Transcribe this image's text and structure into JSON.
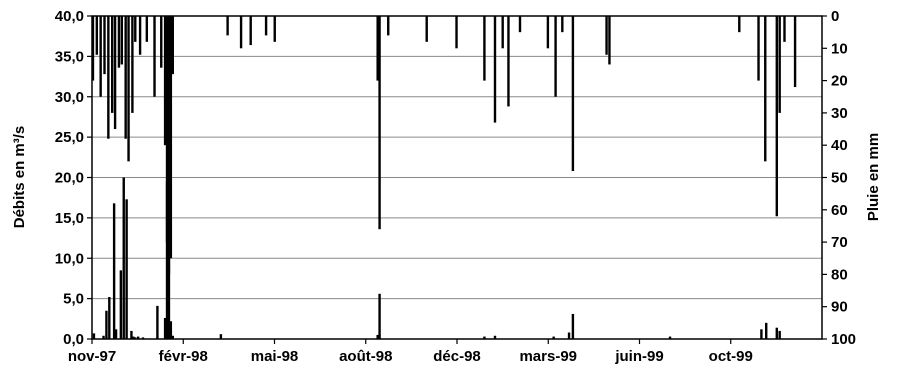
{
  "chart_data": {
    "type": "bar",
    "title": "",
    "x_ticks": [
      "nov-97",
      "févr-98",
      "mai-98",
      "août-98",
      "déc-98",
      "mars-99",
      "juin-99",
      "oct-99"
    ],
    "x_range": [
      "1997-11-01",
      "1999-11-30"
    ],
    "y_left": {
      "label": "Débits en m³/s",
      "range": [
        0,
        40
      ],
      "ticks": [
        "0,0",
        "5,0",
        "10,0",
        "15,0",
        "20,0",
        "25,0",
        "30,0",
        "35,0",
        "40,0"
      ]
    },
    "y_right": {
      "label": "Pluie en mm",
      "range": [
        0,
        100
      ],
      "inverted": true,
      "ticks": [
        "0",
        "10",
        "20",
        "30",
        "40",
        "50",
        "60",
        "70",
        "80",
        "90",
        "100"
      ]
    },
    "grid": true,
    "series": [
      {
        "name": "",
        "axis": "left",
        "type": "bar",
        "date": [
          "1997-11-03",
          "1997-11-13",
          "1997-11-16",
          "1997-11-19",
          "1997-11-24",
          "1997-11-26",
          "1997-12-01",
          "1997-12-04",
          "1997-12-07",
          "1997-12-12",
          "1997-12-14",
          "1997-12-16",
          "1997-12-19",
          "1997-12-24",
          "1998-01-08",
          "1998-01-16",
          "1998-01-18",
          "1998-01-20",
          "1998-01-22",
          "1998-01-24",
          "1998-03-15",
          "1998-08-25",
          "1998-08-27",
          "1998-12-14",
          "1998-12-25",
          "1999-02-24",
          "1999-03-12",
          "1999-03-16",
          "1999-06-25",
          "1999-09-28",
          "1999-10-03",
          "1999-10-14",
          "1999-10-17"
        ],
        "values": [
          0.7,
          0.4,
          3.5,
          5.2,
          16.8,
          1.2,
          8.5,
          20.0,
          17.3,
          1.0,
          0.3,
          0.2,
          0.3,
          0.2,
          4.1,
          2.6,
          19.5,
          13.3,
          2.2,
          0.4,
          0.6,
          0.5,
          5.6,
          0.3,
          0.4,
          0.3,
          0.8,
          3.1,
          0.3,
          1.2,
          2.0,
          1.4,
          1.0
        ]
      },
      {
        "name": "",
        "axis": "right",
        "type": "bar",
        "date": [
          "1997-11-02",
          "1997-11-06",
          "1997-11-10",
          "1997-11-14",
          "1997-11-18",
          "1997-11-22",
          "1997-11-25",
          "1997-11-29",
          "1997-12-02",
          "1997-12-06",
          "1997-12-09",
          "1997-12-13",
          "1997-12-16",
          "1997-12-21",
          "1997-12-28",
          "1998-01-05",
          "1998-01-12",
          "1998-01-16",
          "1998-01-18",
          "1998-01-20",
          "1998-01-22",
          "1998-01-24",
          "1998-03-22",
          "1998-04-05",
          "1998-04-15",
          "1998-05-01",
          "1998-05-10",
          "1998-08-25",
          "1998-08-27",
          "1998-09-05",
          "1998-10-15",
          "1998-11-15",
          "1998-12-14",
          "1998-12-25",
          "1999-01-02",
          "1999-01-08",
          "1999-01-20",
          "1999-02-18",
          "1999-02-26",
          "1999-03-05",
          "1999-03-16",
          "1999-04-20",
          "1999-04-23",
          "1999-09-05",
          "1999-09-25",
          "1999-10-02",
          "1999-10-14",
          "1999-10-17",
          "1999-10-22",
          "1999-11-02"
        ],
        "values": [
          20,
          12,
          25,
          18,
          38,
          30,
          35,
          16,
          15,
          38,
          45,
          30,
          8,
          12,
          8,
          25,
          16,
          40,
          70,
          80,
          75,
          18,
          6,
          10,
          9,
          6,
          8,
          20,
          66,
          6,
          8,
          10,
          20,
          33,
          10,
          28,
          5,
          10,
          25,
          5,
          48,
          12,
          15,
          5,
          20,
          45,
          62,
          30,
          8,
          22
        ]
      }
    ]
  }
}
